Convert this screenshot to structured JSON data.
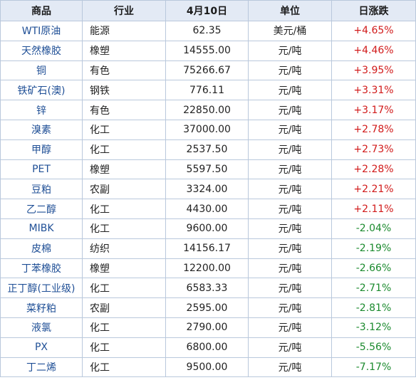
{
  "table": {
    "headers": [
      "商品",
      "行业",
      "4月10日",
      "单位",
      "日涨跌"
    ],
    "colors": {
      "up": "#d11a1a",
      "down": "#1b8a2e",
      "name": "#1f4f96",
      "header_bg": "#e3eaf5"
    },
    "rows": [
      {
        "name": "WTI原油",
        "sector": "能源",
        "price": "62.35",
        "unit": "美元/桶",
        "change": "+4.65%"
      },
      {
        "name": "天然橡胶",
        "sector": "橡塑",
        "price": "14555.00",
        "unit": "元/吨",
        "change": "+4.46%"
      },
      {
        "name": "铜",
        "sector": "有色",
        "price": "75266.67",
        "unit": "元/吨",
        "change": "+3.95%"
      },
      {
        "name": "铁矿石(澳)",
        "sector": "钢铁",
        "price": "776.11",
        "unit": "元/吨",
        "change": "+3.31%"
      },
      {
        "name": "锌",
        "sector": "有色",
        "price": "22850.00",
        "unit": "元/吨",
        "change": "+3.17%"
      },
      {
        "name": "溴素",
        "sector": "化工",
        "price": "37000.00",
        "unit": "元/吨",
        "change": "+2.78%"
      },
      {
        "name": "甲醇",
        "sector": "化工",
        "price": "2537.50",
        "unit": "元/吨",
        "change": "+2.73%"
      },
      {
        "name": "PET",
        "sector": "橡塑",
        "price": "5597.50",
        "unit": "元/吨",
        "change": "+2.28%"
      },
      {
        "name": "豆粕",
        "sector": "农副",
        "price": "3324.00",
        "unit": "元/吨",
        "change": "+2.21%"
      },
      {
        "name": "乙二醇",
        "sector": "化工",
        "price": "4430.00",
        "unit": "元/吨",
        "change": "+2.11%"
      },
      {
        "name": "MIBK",
        "sector": "化工",
        "price": "9600.00",
        "unit": "元/吨",
        "change": "-2.04%"
      },
      {
        "name": "皮棉",
        "sector": "纺织",
        "price": "14156.17",
        "unit": "元/吨",
        "change": "-2.19%"
      },
      {
        "name": "丁苯橡胶",
        "sector": "橡塑",
        "price": "12200.00",
        "unit": "元/吨",
        "change": "-2.66%"
      },
      {
        "name": "正丁醇(工业级)",
        "sector": "化工",
        "price": "6583.33",
        "unit": "元/吨",
        "change": "-2.71%"
      },
      {
        "name": "菜籽粕",
        "sector": "农副",
        "price": "2595.00",
        "unit": "元/吨",
        "change": "-2.81%"
      },
      {
        "name": "液氯",
        "sector": "化工",
        "price": "2790.00",
        "unit": "元/吨",
        "change": "-3.12%"
      },
      {
        "name": "PX",
        "sector": "化工",
        "price": "6800.00",
        "unit": "元/吨",
        "change": "-5.56%"
      },
      {
        "name": "丁二烯",
        "sector": "化工",
        "price": "9500.00",
        "unit": "元/吨",
        "change": "-7.17%"
      }
    ]
  }
}
